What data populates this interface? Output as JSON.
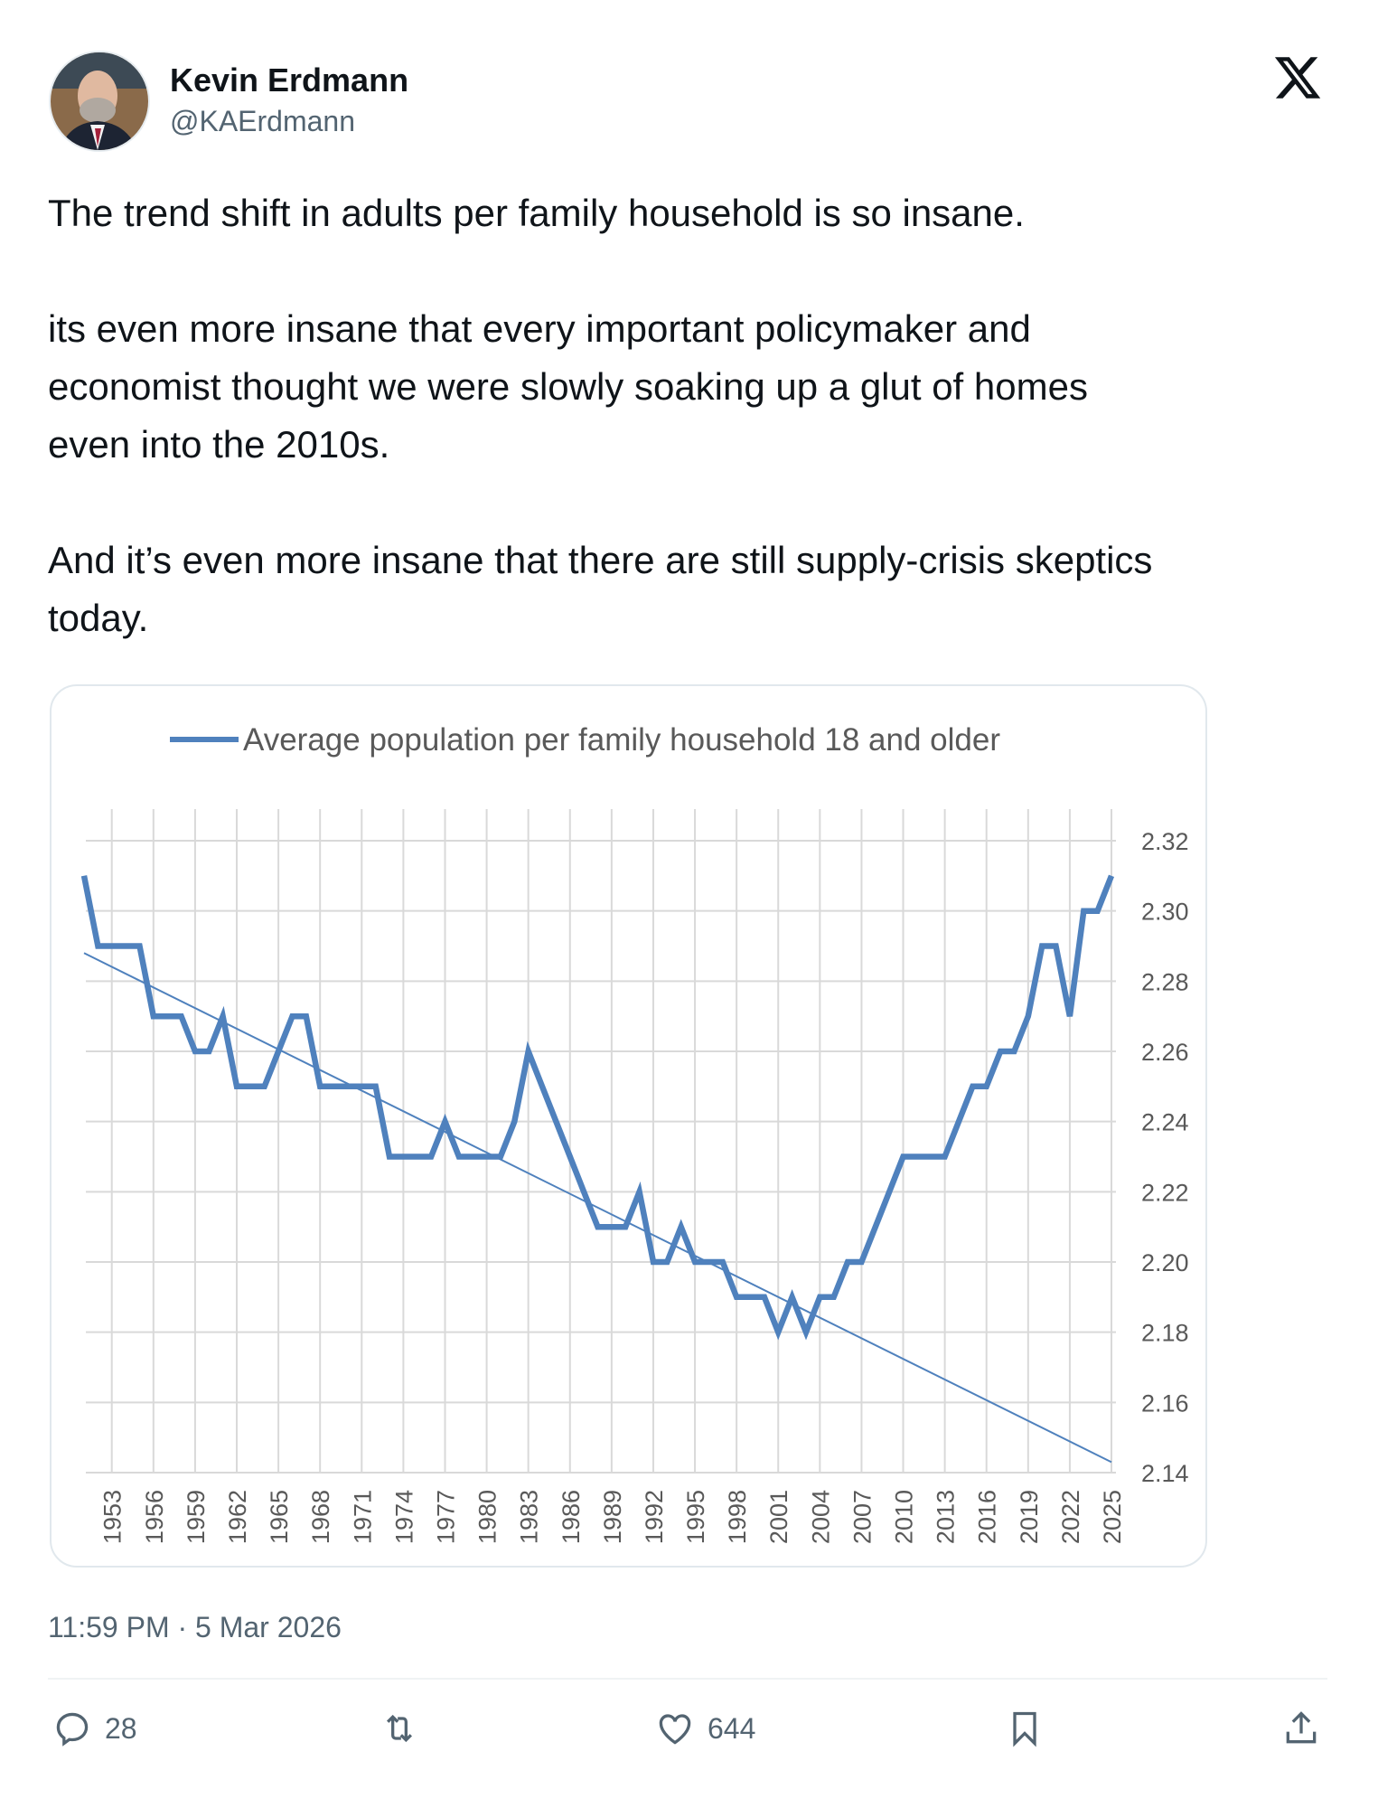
{
  "author": {
    "name": "Kevin Erdmann",
    "handle": "@KAErdmann"
  },
  "tweet": {
    "paragraphs": [
      [
        "The trend shift in adults per family household is so insane."
      ],
      [
        "its even more insane that every important policymaker and",
        "economist thought we were slowly soaking up a glut of homes",
        "even into the 2010s."
      ],
      [
        "And it’s even more insane that there are still supply-crisis skeptics",
        "today."
      ]
    ]
  },
  "timestamp": "11:59 PM · 5 Mar 2026",
  "actions": {
    "replies": "28",
    "likes": "644"
  },
  "colors": {
    "series": "#4f81bd",
    "grid": "#d9d9d9",
    "axis_text": "#595959"
  },
  "chart_data": {
    "type": "line",
    "legend": "Average population per family household 18 and older",
    "legend_position": "top",
    "x": [
      1951,
      1952,
      1953,
      1954,
      1955,
      1956,
      1957,
      1958,
      1959,
      1960,
      1961,
      1962,
      1963,
      1964,
      1965,
      1966,
      1967,
      1968,
      1969,
      1970,
      1971,
      1972,
      1973,
      1974,
      1975,
      1976,
      1977,
      1978,
      1979,
      1980,
      1981,
      1982,
      1983,
      1984,
      1985,
      1986,
      1987,
      1988,
      1989,
      1990,
      1991,
      1992,
      1993,
      1994,
      1995,
      1996,
      1997,
      1998,
      1999,
      2000,
      2001,
      2002,
      2003,
      2004,
      2005,
      2006,
      2007,
      2008,
      2009,
      2010,
      2011,
      2012,
      2013,
      2014,
      2015,
      2016,
      2017,
      2018,
      2019,
      2020,
      2021,
      2022,
      2023,
      2024,
      2025
    ],
    "series": [
      {
        "name": "Average population per family household 18 and older",
        "values": [
          2.31,
          2.29,
          2.29,
          2.29,
          2.29,
          2.27,
          2.27,
          2.27,
          2.26,
          2.26,
          2.27,
          2.25,
          2.25,
          2.25,
          2.26,
          2.27,
          2.27,
          2.25,
          2.25,
          2.25,
          2.25,
          2.25,
          2.23,
          2.23,
          2.23,
          2.23,
          2.24,
          2.23,
          2.23,
          2.23,
          2.23,
          2.24,
          2.26,
          2.25,
          2.24,
          2.23,
          2.22,
          2.21,
          2.21,
          2.21,
          2.22,
          2.2,
          2.2,
          2.21,
          2.2,
          2.2,
          2.2,
          2.19,
          2.19,
          2.19,
          2.18,
          2.19,
          2.18,
          2.19,
          2.19,
          2.2,
          2.2,
          2.21,
          2.22,
          2.23,
          2.23,
          2.23,
          2.23,
          2.24,
          2.25,
          2.25,
          2.26,
          2.26,
          2.27,
          2.29,
          2.29,
          2.27,
          2.3,
          2.3,
          2.31
        ]
      }
    ],
    "trendline": {
      "type": "linear",
      "start": [
        1951,
        2.288
      ],
      "end": [
        2025,
        2.143
      ]
    },
    "x_tick_labels": [
      "1953",
      "1956",
      "1959",
      "1962",
      "1965",
      "1968",
      "1971",
      "1974",
      "1977",
      "1980",
      "1983",
      "1986",
      "1989",
      "1992",
      "1995",
      "1998",
      "2001",
      "2004",
      "2007",
      "2010",
      "2013",
      "2016",
      "2019",
      "2022",
      "2025"
    ],
    "y_tick_labels": [
      "2.14",
      "2.16",
      "2.18",
      "2.20",
      "2.22",
      "2.24",
      "2.26",
      "2.28",
      "2.30",
      "2.32"
    ],
    "ylim": [
      2.14,
      2.32
    ],
    "xlim": [
      1951,
      2025
    ],
    "y_axis_side": "right",
    "grid": true
  }
}
